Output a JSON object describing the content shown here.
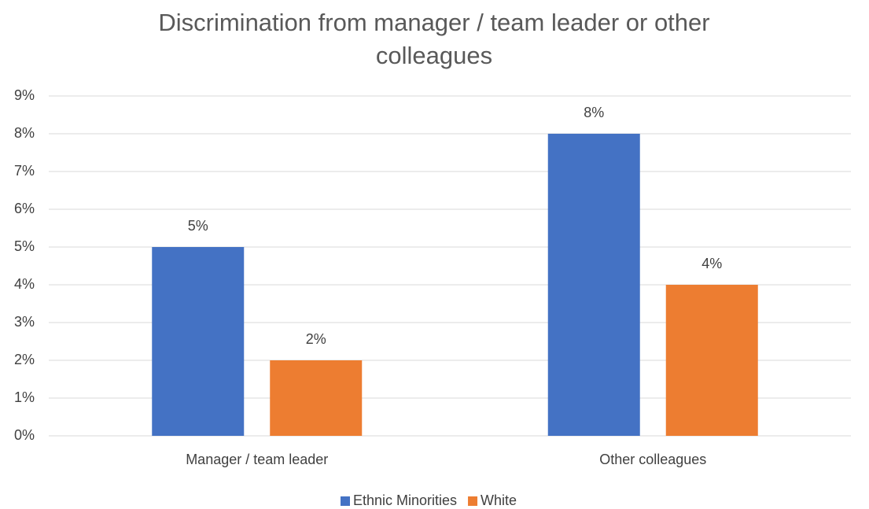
{
  "chart_data": {
    "type": "bar",
    "title": "Discrimination from manager / team leader or other colleagues",
    "categories": [
      "Manager / team leader",
      "Other colleagues"
    ],
    "series": [
      {
        "name": "Ethnic Minorities",
        "color": "#4472c4",
        "values": [
          5,
          8
        ],
        "value_labels": [
          "5%",
          "8%"
        ]
      },
      {
        "name": "White",
        "color": "#ed7d31",
        "values": [
          2,
          4
        ],
        "value_labels": [
          "2%",
          "4%"
        ]
      }
    ],
    "ylim": [
      0,
      9
    ],
    "yticks": [
      {
        "value": 0,
        "label": "0%"
      },
      {
        "value": 1,
        "label": "1%"
      },
      {
        "value": 2,
        "label": "2%"
      },
      {
        "value": 3,
        "label": "3%"
      },
      {
        "value": 4,
        "label": "4%"
      },
      {
        "value": 5,
        "label": "5%"
      },
      {
        "value": 6,
        "label": "6%"
      },
      {
        "value": 7,
        "label": "7%"
      },
      {
        "value": 8,
        "label": "8%"
      },
      {
        "value": 9,
        "label": "9%"
      }
    ],
    "grid": true,
    "legend": "bottom"
  }
}
